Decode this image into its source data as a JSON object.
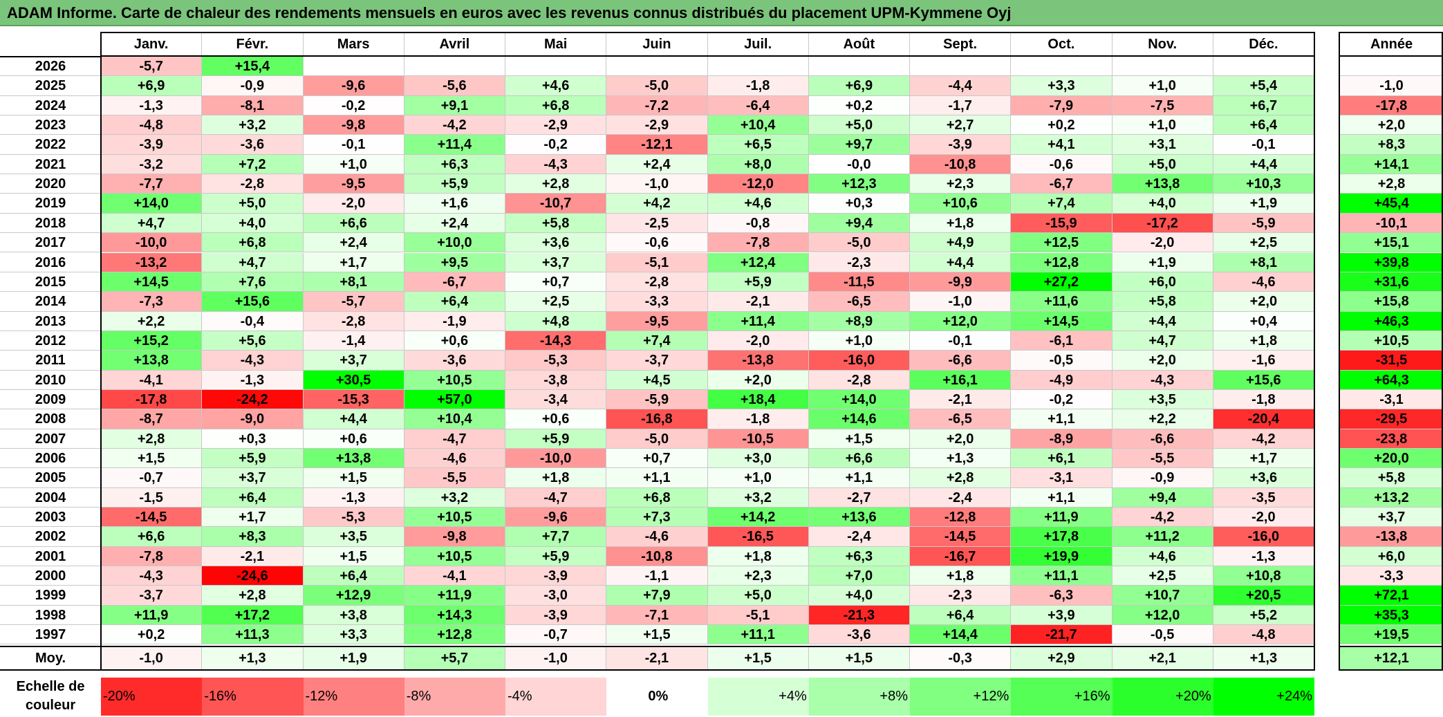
{
  "title": "ADAM Informe. Carte de chaleur des rendements mensuels en euros avec les revenus connus distribués du placement UPM-Kymmene Oyj",
  "chart_data": {
    "type": "heatmap",
    "title": "ADAM Informe. Carte de chaleur des rendements mensuels en euros avec les revenus connus distribués du placement UPM-Kymmene Oyj",
    "columns": [
      "Janv.",
      "Févr.",
      "Mars",
      "Avril",
      "Mai",
      "Juin",
      "Juil.",
      "Août",
      "Sept.",
      "Oct.",
      "Nov.",
      "Déc."
    ],
    "annual_header": "Année",
    "rows": [
      {
        "year": "2026",
        "values": [
          "-5,7",
          "+15,4",
          "",
          "",
          "",
          "",
          "",
          "",
          "",
          "",
          "",
          ""
        ],
        "annual": ""
      },
      {
        "year": "2025",
        "values": [
          "+6,9",
          "-0,9",
          "-9,6",
          "-5,6",
          "+4,6",
          "-5,0",
          "-1,8",
          "+6,9",
          "-4,4",
          "+3,3",
          "+1,0",
          "+5,4"
        ],
        "annual": "-1,0"
      },
      {
        "year": "2024",
        "values": [
          "-1,3",
          "-8,1",
          "-0,2",
          "+9,1",
          "+6,8",
          "-7,2",
          "-6,4",
          "+0,2",
          "-1,7",
          "-7,9",
          "-7,5",
          "+6,7"
        ],
        "annual": "-17,8"
      },
      {
        "year": "2023",
        "values": [
          "-4,8",
          "+3,2",
          "-9,8",
          "-4,2",
          "-2,9",
          "-2,9",
          "+10,4",
          "+5,0",
          "+2,7",
          "+0,2",
          "+1,0",
          "+6,4"
        ],
        "annual": "+2,0"
      },
      {
        "year": "2022",
        "values": [
          "-3,9",
          "-3,6",
          "-0,1",
          "+11,4",
          "-0,2",
          "-12,1",
          "+6,5",
          "+9,7",
          "-3,9",
          "+4,1",
          "+3,1",
          "-0,1"
        ],
        "annual": "+8,3"
      },
      {
        "year": "2021",
        "values": [
          "-3,2",
          "+7,2",
          "+1,0",
          "+6,3",
          "-4,3",
          "+2,4",
          "+8,0",
          "-0,0",
          "-10,8",
          "-0,6",
          "+5,0",
          "+4,4"
        ],
        "annual": "+14,1"
      },
      {
        "year": "2020",
        "values": [
          "-7,7",
          "-2,8",
          "-9,5",
          "+5,9",
          "+2,8",
          "-1,0",
          "-12,0",
          "+12,3",
          "+2,3",
          "-6,7",
          "+13,8",
          "+10,3"
        ],
        "annual": "+2,8"
      },
      {
        "year": "2019",
        "values": [
          "+14,0",
          "+5,0",
          "-2,0",
          "+1,6",
          "-10,7",
          "+4,2",
          "+4,6",
          "+0,3",
          "+10,6",
          "+7,4",
          "+4,0",
          "+1,9"
        ],
        "annual": "+45,4"
      },
      {
        "year": "2018",
        "values": [
          "+4,7",
          "+4,0",
          "+6,6",
          "+2,4",
          "+5,8",
          "-2,5",
          "-0,8",
          "+9,4",
          "+1,8",
          "-15,9",
          "-17,2",
          "-5,9"
        ],
        "annual": "-10,1"
      },
      {
        "year": "2017",
        "values": [
          "-10,0",
          "+6,8",
          "+2,4",
          "+10,0",
          "+3,6",
          "-0,6",
          "-7,8",
          "-5,0",
          "+4,9",
          "+12,5",
          "-2,0",
          "+2,5"
        ],
        "annual": "+15,1"
      },
      {
        "year": "2016",
        "values": [
          "-13,2",
          "+4,7",
          "+1,7",
          "+9,5",
          "+3,7",
          "-5,1",
          "+12,4",
          "-2,3",
          "+4,4",
          "+12,8",
          "+1,9",
          "+8,1"
        ],
        "annual": "+39,8"
      },
      {
        "year": "2015",
        "values": [
          "+14,5",
          "+7,6",
          "+8,1",
          "-6,7",
          "+0,7",
          "-2,8",
          "+5,9",
          "-11,5",
          "-9,9",
          "+27,2",
          "+6,0",
          "-4,6"
        ],
        "annual": "+31,6"
      },
      {
        "year": "2014",
        "values": [
          "-7,3",
          "+15,6",
          "-5,7",
          "+6,4",
          "+2,5",
          "-3,3",
          "-2,1",
          "-6,5",
          "-1,0",
          "+11,6",
          "+5,8",
          "+2,0"
        ],
        "annual": "+15,8"
      },
      {
        "year": "2013",
        "values": [
          "+2,2",
          "-0,4",
          "-2,8",
          "-1,9",
          "+4,8",
          "-9,5",
          "+11,4",
          "+8,9",
          "+12,0",
          "+14,5",
          "+4,4",
          "+0,4"
        ],
        "annual": "+46,3"
      },
      {
        "year": "2012",
        "values": [
          "+15,2",
          "+5,6",
          "-1,4",
          "+0,6",
          "-14,3",
          "+7,4",
          "-2,0",
          "+1,0",
          "-0,1",
          "-6,1",
          "+4,7",
          "+1,8"
        ],
        "annual": "+10,5"
      },
      {
        "year": "2011",
        "values": [
          "+13,8",
          "-4,3",
          "+3,7",
          "-3,6",
          "-5,3",
          "-3,7",
          "-13,8",
          "-16,0",
          "-6,6",
          "-0,5",
          "+2,0",
          "-1,6"
        ],
        "annual": "-31,5"
      },
      {
        "year": "2010",
        "values": [
          "-4,1",
          "-1,3",
          "+30,5",
          "+10,5",
          "-3,8",
          "+4,5",
          "+2,0",
          "-2,8",
          "+16,1",
          "-4,9",
          "-4,3",
          "+15,6"
        ],
        "annual": "+64,3"
      },
      {
        "year": "2009",
        "values": [
          "-17,8",
          "-24,2",
          "-15,3",
          "+57,0",
          "-3,4",
          "-5,9",
          "+18,4",
          "+14,0",
          "-2,1",
          "-0,2",
          "+3,5",
          "-1,8"
        ],
        "annual": "-3,1"
      },
      {
        "year": "2008",
        "values": [
          "-8,7",
          "-9,0",
          "+4,4",
          "+10,4",
          "+0,6",
          "-16,8",
          "-1,8",
          "+14,6",
          "-6,5",
          "+1,1",
          "+2,2",
          "-20,4"
        ],
        "annual": "-29,5"
      },
      {
        "year": "2007",
        "values": [
          "+2,8",
          "+0,3",
          "+0,6",
          "-4,7",
          "+5,9",
          "-5,0",
          "-10,5",
          "+1,5",
          "+2,0",
          "-8,9",
          "-6,6",
          "-4,2"
        ],
        "annual": "-23,8"
      },
      {
        "year": "2006",
        "values": [
          "+1,5",
          "+5,9",
          "+13,8",
          "-4,6",
          "-10,0",
          "+0,7",
          "+3,0",
          "+6,6",
          "+1,3",
          "+6,1",
          "-5,5",
          "+1,7"
        ],
        "annual": "+20,0"
      },
      {
        "year": "2005",
        "values": [
          "-0,7",
          "+3,7",
          "+1,5",
          "-5,5",
          "+1,8",
          "+1,1",
          "+1,0",
          "+1,1",
          "+2,8",
          "-3,1",
          "-0,9",
          "+3,6"
        ],
        "annual": "+5,8"
      },
      {
        "year": "2004",
        "values": [
          "-1,5",
          "+6,4",
          "-1,3",
          "+3,2",
          "-4,7",
          "+6,8",
          "+3,2",
          "-2,7",
          "-2,4",
          "+1,1",
          "+9,4",
          "-3,5"
        ],
        "annual": "+13,2"
      },
      {
        "year": "2003",
        "values": [
          "-14,5",
          "+1,7",
          "-5,3",
          "+10,5",
          "-9,6",
          "+7,3",
          "+14,2",
          "+13,6",
          "-12,8",
          "+11,9",
          "-4,2",
          "-2,0"
        ],
        "annual": "+3,7"
      },
      {
        "year": "2002",
        "values": [
          "+6,6",
          "+8,3",
          "+3,5",
          "-9,8",
          "+7,7",
          "-4,6",
          "-16,5",
          "-2,4",
          "-14,5",
          "+17,8",
          "+11,2",
          "-16,0"
        ],
        "annual": "-13,8"
      },
      {
        "year": "2001",
        "values": [
          "-7,8",
          "-2,1",
          "+1,5",
          "+10,5",
          "+5,9",
          "-10,8",
          "+1,8",
          "+6,3",
          "-16,7",
          "+19,9",
          "+4,6",
          "-1,3"
        ],
        "annual": "+6,0"
      },
      {
        "year": "2000",
        "values": [
          "-4,3",
          "-24,6",
          "+6,4",
          "-4,1",
          "-3,9",
          "-1,1",
          "+2,3",
          "+7,0",
          "+1,8",
          "+11,1",
          "+2,5",
          "+10,8"
        ],
        "annual": "-3,3"
      },
      {
        "year": "1999",
        "values": [
          "-3,7",
          "+2,8",
          "+12,9",
          "+11,9",
          "-3,0",
          "+7,9",
          "+5,0",
          "+4,0",
          "-2,3",
          "-6,3",
          "+10,7",
          "+20,5"
        ],
        "annual": "+72,1"
      },
      {
        "year": "1998",
        "values": [
          "+11,9",
          "+17,2",
          "+3,8",
          "+14,3",
          "-3,9",
          "-7,1",
          "-5,1",
          "-21,3",
          "+6,4",
          "+3,9",
          "+12,0",
          "+5,2"
        ],
        "annual": "+35,3"
      },
      {
        "year": "1997",
        "values": [
          "+0,2",
          "+11,3",
          "+3,3",
          "+12,8",
          "-0,7",
          "+1,5",
          "+11,1",
          "-3,6",
          "+14,4",
          "-21,7",
          "-0,5",
          "-4,8"
        ],
        "annual": "+19,5"
      }
    ],
    "average": {
      "label": "Moy.",
      "values": [
        "-1,0",
        "+1,3",
        "+1,9",
        "+5,7",
        "-1,0",
        "-2,1",
        "+1,5",
        "+1,5",
        "-0,3",
        "+2,9",
        "+2,1",
        "+1,3"
      ],
      "annual": "+12,1"
    },
    "color_scale": {
      "label": "Echelle de couleur",
      "stops": [
        "-20%",
        "-16%",
        "-12%",
        "-8%",
        "-4%",
        "0%",
        "+4%",
        "+8%",
        "+12%",
        "+16%",
        "+20%",
        "+24%"
      ],
      "negative_color": "#ff0000",
      "neutral_color": "#ffffff",
      "positive_color": "#00ff00"
    }
  }
}
